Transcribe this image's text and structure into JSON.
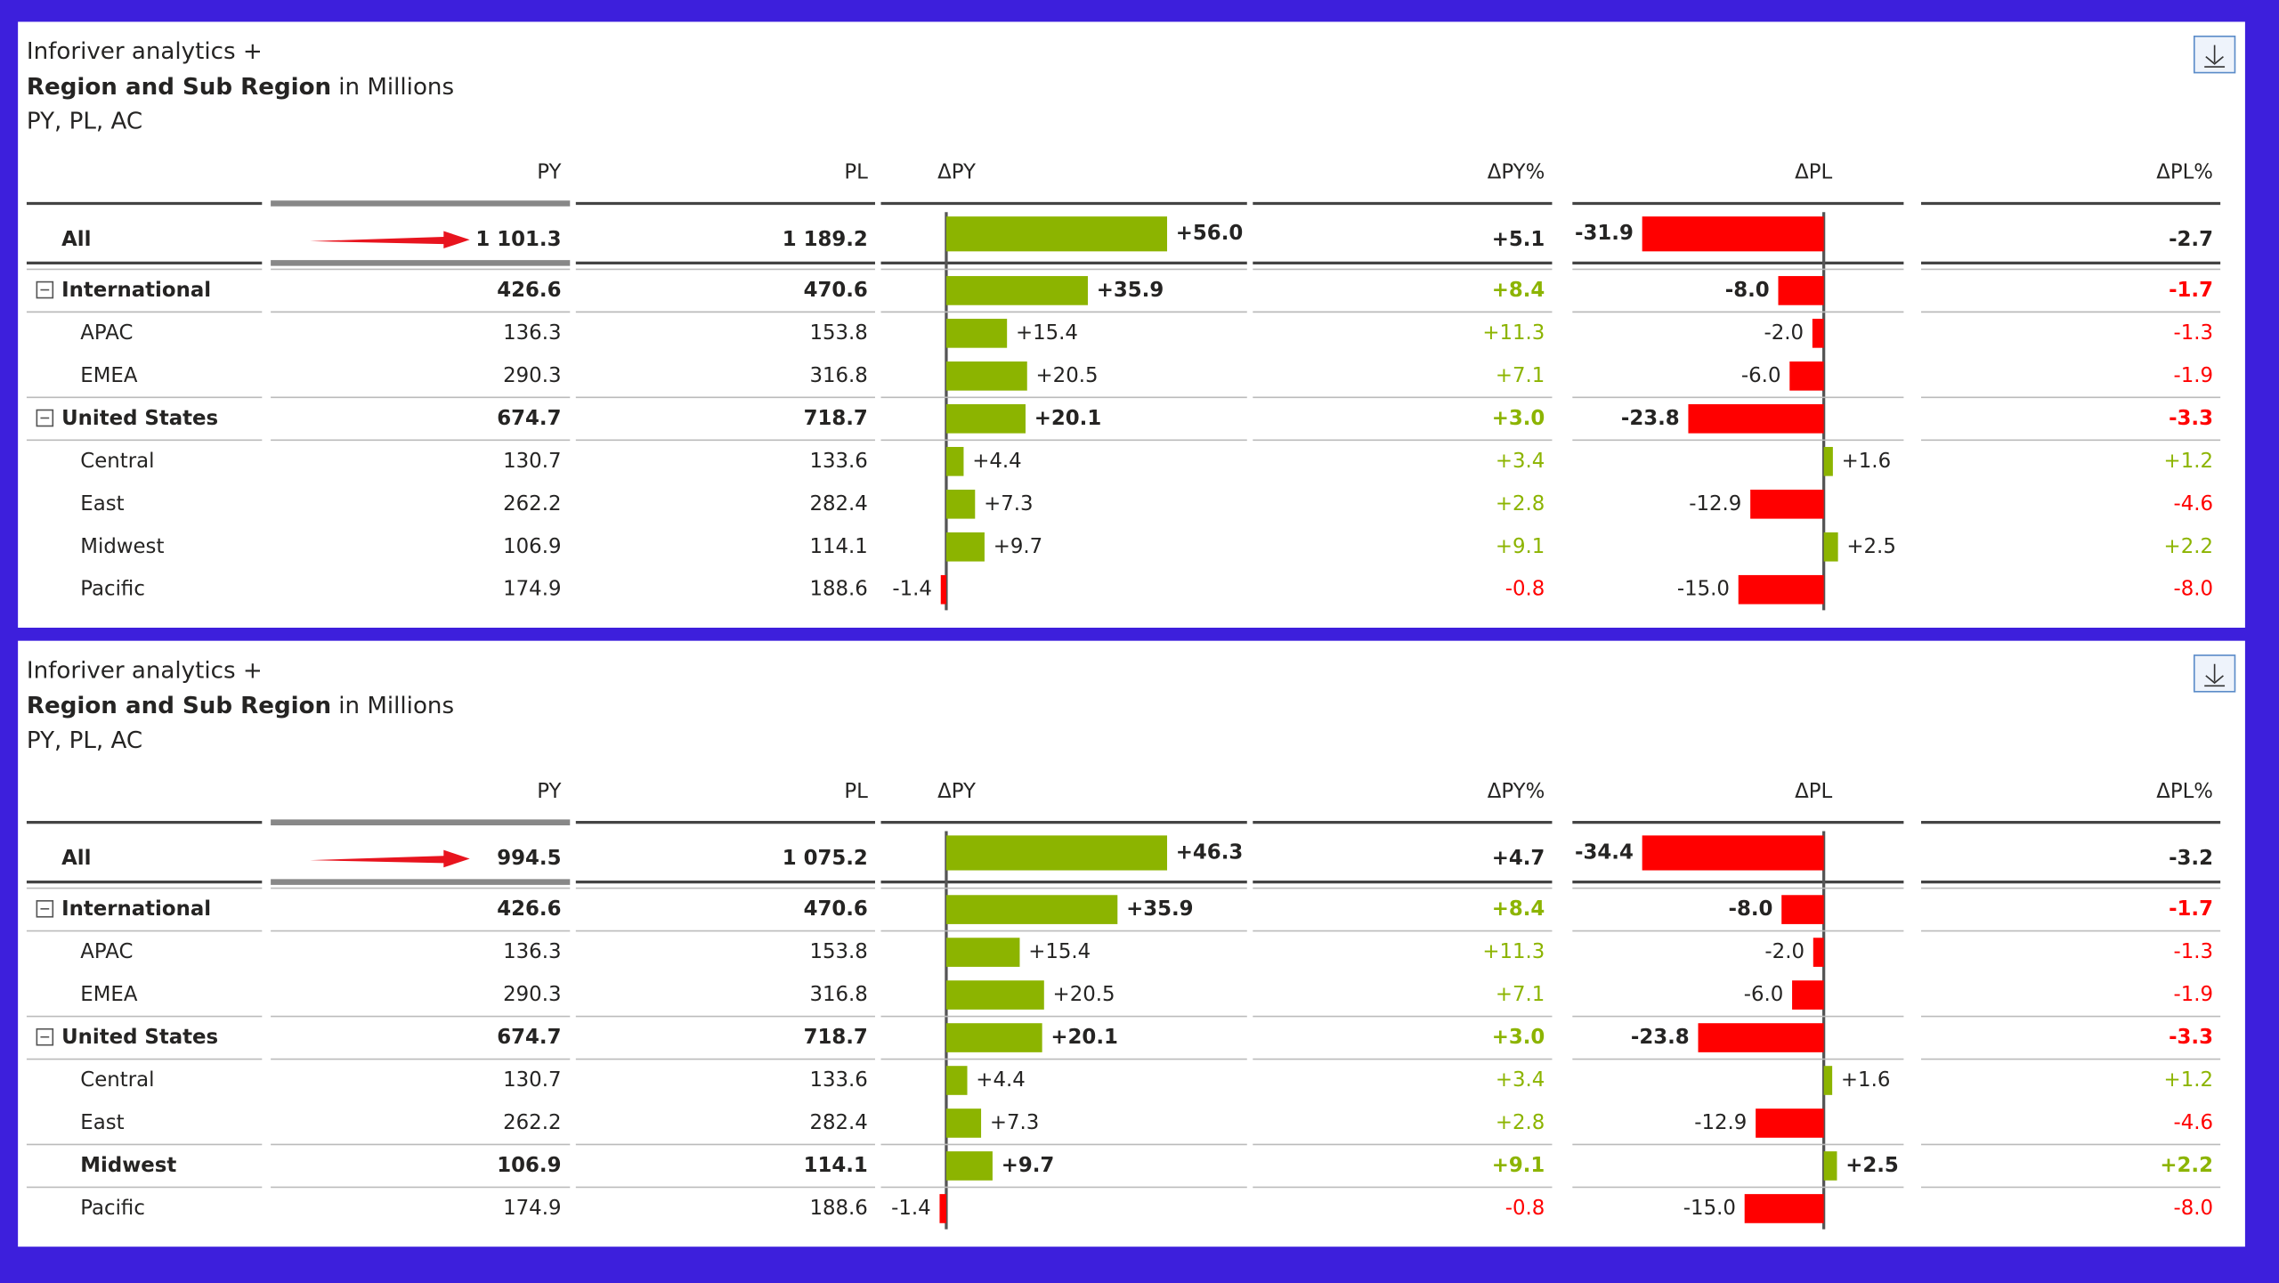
{
  "visuals": [
    {
      "header": {
        "app": "Inforiver analytics +",
        "title_bold": "Region and Sub Region",
        "title_rest": "in Millions",
        "subtitle": "PY, PL, AC"
      },
      "columns": [
        "PY",
        "PL",
        "ΔPY",
        "ΔPY%",
        "ΔPL",
        "ΔPL%"
      ],
      "rows": [
        {
          "name": "All",
          "level": 0,
          "bold": true,
          "py": "1 101.3",
          "pl": "1 189.2",
          "dpy": {
            "value": 56.0,
            "label": "+56.0"
          },
          "dpy_pct": {
            "value": 5.1,
            "label": "+5.1"
          },
          "dpl": {
            "value": -31.9,
            "label": "-31.9"
          },
          "dpl_pct": {
            "value": -2.7,
            "label": "-2.7"
          }
        },
        {
          "name": "International",
          "level": 1,
          "bold": true,
          "py": "426.6",
          "pl": "470.6",
          "dpy": {
            "value": 35.9,
            "label": "+35.9"
          },
          "dpy_pct": {
            "value": 8.4,
            "label": "+8.4"
          },
          "dpl": {
            "value": -8.0,
            "label": "-8.0"
          },
          "dpl_pct": {
            "value": -1.7,
            "label": "-1.7"
          }
        },
        {
          "name": "APAC",
          "level": 2,
          "bold": false,
          "py": "136.3",
          "pl": "153.8",
          "dpy": {
            "value": 15.4,
            "label": "+15.4"
          },
          "dpy_pct": {
            "value": 11.3,
            "label": "+11.3"
          },
          "dpl": {
            "value": -2.0,
            "label": "-2.0"
          },
          "dpl_pct": {
            "value": -1.3,
            "label": "-1.3"
          }
        },
        {
          "name": "EMEA",
          "level": 2,
          "bold": false,
          "py": "290.3",
          "pl": "316.8",
          "dpy": {
            "value": 20.5,
            "label": "+20.5"
          },
          "dpy_pct": {
            "value": 7.1,
            "label": "+7.1"
          },
          "dpl": {
            "value": -6.0,
            "label": "-6.0"
          },
          "dpl_pct": {
            "value": -1.9,
            "label": "-1.9"
          }
        },
        {
          "name": "United States",
          "level": 1,
          "bold": true,
          "py": "674.7",
          "pl": "718.7",
          "dpy": {
            "value": 20.1,
            "label": "+20.1"
          },
          "dpy_pct": {
            "value": 3.0,
            "label": "+3.0"
          },
          "dpl": {
            "value": -23.8,
            "label": "-23.8"
          },
          "dpl_pct": {
            "value": -3.3,
            "label": "-3.3"
          }
        },
        {
          "name": "Central",
          "level": 2,
          "bold": false,
          "py": "130.7",
          "pl": "133.6",
          "dpy": {
            "value": 4.4,
            "label": "+4.4"
          },
          "dpy_pct": {
            "value": 3.4,
            "label": "+3.4"
          },
          "dpl": {
            "value": 1.6,
            "label": "+1.6"
          },
          "dpl_pct": {
            "value": 1.2,
            "label": "+1.2"
          }
        },
        {
          "name": "East",
          "level": 2,
          "bold": false,
          "py": "262.2",
          "pl": "282.4",
          "dpy": {
            "value": 7.3,
            "label": "+7.3"
          },
          "dpy_pct": {
            "value": 2.8,
            "label": "+2.8"
          },
          "dpl": {
            "value": -12.9,
            "label": "-12.9"
          },
          "dpl_pct": {
            "value": -4.6,
            "label": "-4.6"
          }
        },
        {
          "name": "Midwest",
          "level": 2,
          "bold": false,
          "py": "106.9",
          "pl": "114.1",
          "dpy": {
            "value": 9.7,
            "label": "+9.7"
          },
          "dpy_pct": {
            "value": 9.1,
            "label": "+9.1"
          },
          "dpl": {
            "value": 2.5,
            "label": "+2.5"
          },
          "dpl_pct": {
            "value": 2.2,
            "label": "+2.2"
          }
        },
        {
          "name": "Pacific",
          "level": 2,
          "bold": false,
          "py": "174.9",
          "pl": "188.6",
          "dpy": {
            "value": -1.4,
            "label": "-1.4"
          },
          "dpy_pct": {
            "value": -0.8,
            "label": "-0.8"
          },
          "dpl": {
            "value": -15.0,
            "label": "-15.0"
          },
          "dpl_pct": {
            "value": -8.0,
            "label": "-8.0"
          }
        }
      ]
    },
    {
      "header": {
        "app": "Inforiver analytics +",
        "title_bold": "Region and Sub Region",
        "title_rest": "in Millions",
        "subtitle": "PY, PL, AC"
      },
      "columns": [
        "PY",
        "PL",
        "ΔPY",
        "ΔPY%",
        "ΔPL",
        "ΔPL%"
      ],
      "rows": [
        {
          "name": "All",
          "level": 0,
          "bold": true,
          "py": "994.5",
          "pl": "1 075.2",
          "dpy": {
            "value": 46.3,
            "label": "+46.3"
          },
          "dpy_pct": {
            "value": 4.7,
            "label": "+4.7"
          },
          "dpl": {
            "value": -34.4,
            "label": "-34.4"
          },
          "dpl_pct": {
            "value": -3.2,
            "label": "-3.2"
          }
        },
        {
          "name": "International",
          "level": 1,
          "bold": true,
          "py": "426.6",
          "pl": "470.6",
          "dpy": {
            "value": 35.9,
            "label": "+35.9"
          },
          "dpy_pct": {
            "value": 8.4,
            "label": "+8.4"
          },
          "dpl": {
            "value": -8.0,
            "label": "-8.0"
          },
          "dpl_pct": {
            "value": -1.7,
            "label": "-1.7"
          }
        },
        {
          "name": "APAC",
          "level": 2,
          "bold": false,
          "py": "136.3",
          "pl": "153.8",
          "dpy": {
            "value": 15.4,
            "label": "+15.4"
          },
          "dpy_pct": {
            "value": 11.3,
            "label": "+11.3"
          },
          "dpl": {
            "value": -2.0,
            "label": "-2.0"
          },
          "dpl_pct": {
            "value": -1.3,
            "label": "-1.3"
          }
        },
        {
          "name": "EMEA",
          "level": 2,
          "bold": false,
          "py": "290.3",
          "pl": "316.8",
          "dpy": {
            "value": 20.5,
            "label": "+20.5"
          },
          "dpy_pct": {
            "value": 7.1,
            "label": "+7.1"
          },
          "dpl": {
            "value": -6.0,
            "label": "-6.0"
          },
          "dpl_pct": {
            "value": -1.9,
            "label": "-1.9"
          }
        },
        {
          "name": "United States",
          "level": 1,
          "bold": true,
          "py": "674.7",
          "pl": "718.7",
          "dpy": {
            "value": 20.1,
            "label": "+20.1"
          },
          "dpy_pct": {
            "value": 3.0,
            "label": "+3.0"
          },
          "dpl": {
            "value": -23.8,
            "label": "-23.8"
          },
          "dpl_pct": {
            "value": -3.3,
            "label": "-3.3"
          }
        },
        {
          "name": "Central",
          "level": 2,
          "bold": false,
          "py": "130.7",
          "pl": "133.6",
          "dpy": {
            "value": 4.4,
            "label": "+4.4"
          },
          "dpy_pct": {
            "value": 3.4,
            "label": "+3.4"
          },
          "dpl": {
            "value": 1.6,
            "label": "+1.6"
          },
          "dpl_pct": {
            "value": 1.2,
            "label": "+1.2"
          }
        },
        {
          "name": "East",
          "level": 2,
          "bold": false,
          "py": "262.2",
          "pl": "282.4",
          "dpy": {
            "value": 7.3,
            "label": "+7.3"
          },
          "dpy_pct": {
            "value": 2.8,
            "label": "+2.8"
          },
          "dpl": {
            "value": -12.9,
            "label": "-12.9"
          },
          "dpl_pct": {
            "value": -4.6,
            "label": "-4.6"
          }
        },
        {
          "name": "Midwest",
          "level": 2,
          "bold": true,
          "py": "106.9",
          "pl": "114.1",
          "dpy": {
            "value": 9.7,
            "label": "+9.7"
          },
          "dpy_pct": {
            "value": 9.1,
            "label": "+9.1"
          },
          "dpl": {
            "value": 2.5,
            "label": "+2.5"
          },
          "dpl_pct": {
            "value": 2.2,
            "label": "+2.2"
          }
        },
        {
          "name": "Pacific",
          "level": 2,
          "bold": false,
          "py": "174.9",
          "pl": "188.6",
          "dpy": {
            "value": -1.4,
            "label": "-1.4"
          },
          "dpy_pct": {
            "value": -0.8,
            "label": "-0.8"
          },
          "dpl": {
            "value": -15.0,
            "label": "-15.0"
          },
          "dpl_pct": {
            "value": -8.0,
            "label": "-8.0"
          }
        }
      ]
    }
  ]
}
